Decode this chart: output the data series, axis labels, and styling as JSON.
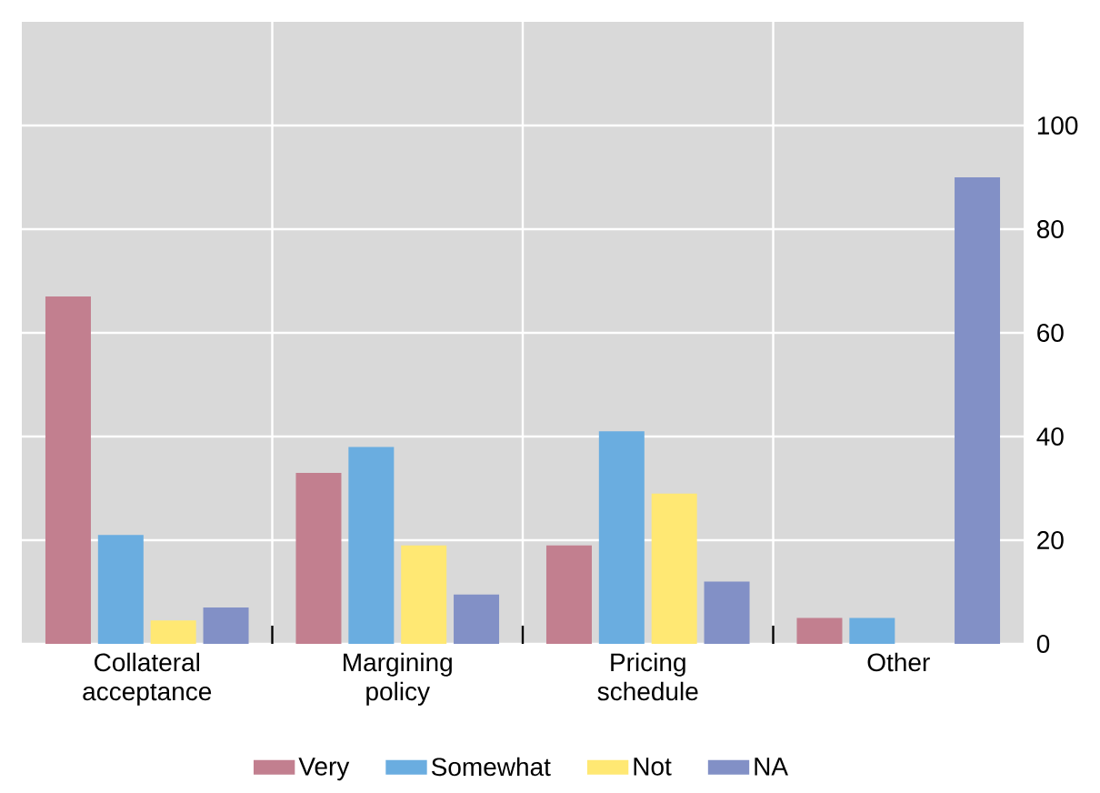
{
  "chart_data": {
    "type": "bar",
    "categories": [
      "Collateral acceptance",
      "Margining policy",
      "Pricing schedule",
      "Other"
    ],
    "series": [
      {
        "name": "Very",
        "color": "#c27f8f",
        "values": [
          67,
          33,
          19,
          5
        ]
      },
      {
        "name": "Somewhat",
        "color": "#6aade0",
        "values": [
          21,
          38,
          41,
          5
        ]
      },
      {
        "name": "Not",
        "color": "#ffe873",
        "values": [
          4.5,
          19,
          29,
          null
        ]
      },
      {
        "name": "NA",
        "color": "#8290c6",
        "values": [
          7,
          9.5,
          12,
          90
        ]
      }
    ],
    "ylim": [
      0,
      120
    ],
    "yticks": [
      0,
      20,
      40,
      60,
      80,
      100
    ],
    "grid": true,
    "legend": "bottom"
  }
}
